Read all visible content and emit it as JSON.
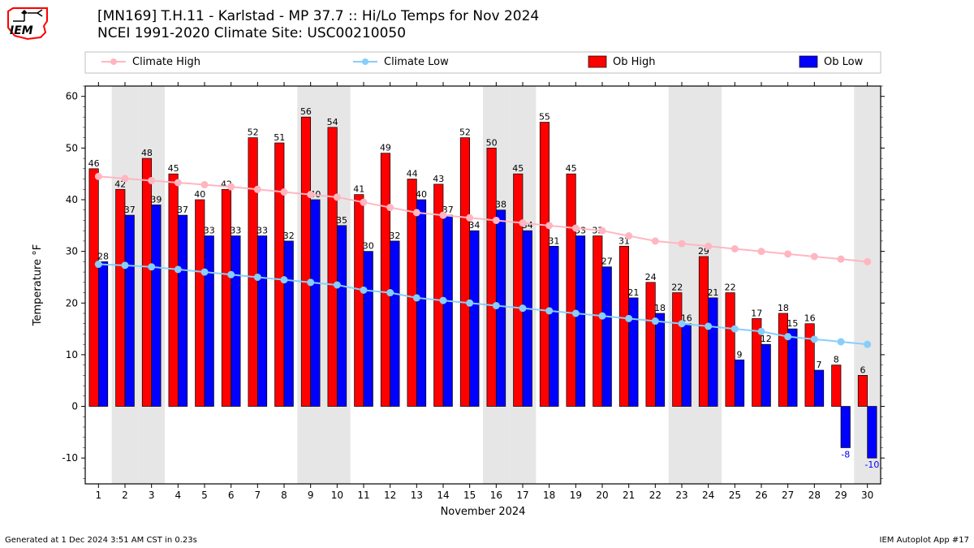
{
  "title_line1": "[MN169] T.H.11 - Karlstad - MP 37.7  :: Hi/Lo Temps for Nov 2024",
  "title_line2": "NCEI 1991-2020 Climate Site: USC00210050",
  "footer_left": "Generated at 1 Dec 2024 3:51 AM CST in 0.23s",
  "footer_right": "IEM Autoplot App #17",
  "legend": {
    "climate_high": "Climate High",
    "climate_low": "Climate Low",
    "ob_high": "Ob High",
    "ob_low": "Ob Low"
  },
  "axis": {
    "xlabel": "November 2024",
    "ylabel": "Temperature °F",
    "ymin": -15,
    "ymax": 62,
    "yticks": [
      -10,
      0,
      10,
      20,
      30,
      40,
      50,
      60
    ],
    "days": [
      1,
      2,
      3,
      4,
      5,
      6,
      7,
      8,
      9,
      10,
      11,
      12,
      13,
      14,
      15,
      16,
      17,
      18,
      19,
      20,
      21,
      22,
      23,
      24,
      25,
      26,
      27,
      28,
      29,
      30
    ]
  },
  "colors": {
    "ob_high": "#ff0000",
    "ob_low": "#0000ff",
    "climate_high": "#ffb6c1",
    "climate_low": "#87cefa",
    "weekend_band": "#e6e6e6",
    "plot_border": "#000000",
    "grid": "none",
    "bar_edge": "#000000",
    "background": "#ffffff",
    "text": "#000000"
  },
  "style": {
    "bar_width": 0.35,
    "line_marker_r": 4,
    "line_width": 2,
    "font_title": 17,
    "font_axis": 12,
    "font_barlabel": 11
  },
  "weekend_days": [
    2,
    3,
    9,
    10,
    16,
    17,
    23,
    24,
    30
  ],
  "ob_high": [
    46,
    42,
    48,
    45,
    40,
    42,
    52,
    51,
    56,
    54,
    41,
    49,
    44,
    43,
    52,
    50,
    45,
    55,
    45,
    33,
    31,
    24,
    22,
    29,
    22,
    17,
    18,
    16,
    8,
    6
  ],
  "ob_low": [
    28,
    37,
    39,
    37,
    33,
    33,
    33,
    32,
    40,
    35,
    30,
    32,
    40,
    37,
    34,
    38,
    34,
    31,
    33,
    27,
    21,
    18,
    16,
    21,
    9,
    12,
    15,
    7,
    -8,
    -10
  ],
  "climate_high": [
    44.5,
    44.1,
    43.7,
    43.3,
    42.9,
    42.5,
    42.0,
    41.5,
    41.0,
    40.5,
    39.5,
    38.5,
    37.5,
    37.0,
    36.5,
    36.0,
    35.5,
    35.0,
    34.5,
    34.0,
    33.0,
    32.0,
    31.5,
    31.0,
    30.5,
    30.0,
    29.5,
    29.0,
    28.5,
    28.0
  ],
  "climate_low": [
    27.5,
    27.3,
    27.0,
    26.5,
    26.0,
    25.5,
    25.0,
    24.5,
    24.0,
    23.5,
    22.5,
    22.0,
    21.0,
    20.5,
    20.0,
    19.5,
    19.0,
    18.5,
    18.0,
    17.5,
    17.0,
    16.5,
    16.0,
    15.5,
    15.0,
    14.5,
    13.5,
    13.0,
    12.5,
    12.0
  ],
  "logo": {
    "border": "#ff0000",
    "text": "IEM"
  }
}
